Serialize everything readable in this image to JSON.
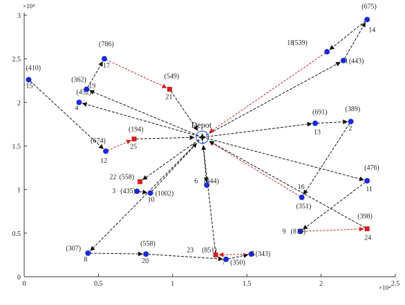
{
  "chart_data": {
    "type": "scatter",
    "title": "",
    "xlabel": "",
    "ylabel": "",
    "x_exponent_label": "×10⁴",
    "y_exponent_label": "×10⁴",
    "xlim": [
      0,
      2.5
    ],
    "ylim": [
      0,
      3
    ],
    "x_ticks": [
      "0",
      "0.5",
      "1",
      "1.5",
      "2",
      "2.5"
    ],
    "y_ticks": [
      "0",
      "0.5",
      "1",
      "1.5",
      "2",
      "2.5",
      "3"
    ],
    "depot": {
      "label": "Depot",
      "x": 1.2,
      "y": 1.6
    },
    "colors": {
      "customer": "#1a2bd8",
      "station": "#d42020",
      "black_route": "#111111",
      "red_route": "#d42020",
      "depot_ring": "#3355cc"
    },
    "nodes": [
      {
        "id": "14",
        "demand": "(675)",
        "x": 2.31,
        "y": 2.95,
        "kind": "customer"
      },
      {
        "id": "18",
        "demand": "(539)",
        "x": 2.04,
        "y": 2.58,
        "kind": "customer"
      },
      {
        "id": "1",
        "demand": "(443)",
        "x": 2.15,
        "y": 2.48,
        "kind": "customer"
      },
      {
        "id": "15",
        "demand": "(410)",
        "x": 0.03,
        "y": 2.26,
        "kind": "customer"
      },
      {
        "id": "17",
        "demand": "(786)",
        "x": 0.54,
        "y": 2.5,
        "kind": "customer"
      },
      {
        "id": "21",
        "demand": "(549)",
        "x": 0.98,
        "y": 2.15,
        "kind": "station"
      },
      {
        "id": "19",
        "demand": "(362)",
        "x": 0.42,
        "y": 2.15,
        "kind": "customer"
      },
      {
        "id": "4",
        "demand": "(452)",
        "x": 0.37,
        "y": 2.0,
        "kind": "customer"
      },
      {
        "id": "13",
        "demand": "(691)",
        "x": 1.96,
        "y": 1.76,
        "kind": "customer"
      },
      {
        "id": "2",
        "demand": "(389)",
        "x": 2.2,
        "y": 1.78,
        "kind": "customer"
      },
      {
        "id": "25",
        "demand": "(194)",
        "x": 0.74,
        "y": 1.58,
        "kind": "station"
      },
      {
        "id": "12",
        "demand": "(674)",
        "x": 0.55,
        "y": 1.44,
        "kind": "customer"
      },
      {
        "id": "22",
        "demand": "(558)",
        "x": 0.78,
        "y": 1.09,
        "kind": "station"
      },
      {
        "id": "3",
        "demand": "(435)",
        "x": 0.76,
        "y": 0.98,
        "kind": "customer"
      },
      {
        "id": "10",
        "demand": "(1002)",
        "x": 0.85,
        "y": 0.96,
        "kind": "customer"
      },
      {
        "id": "6",
        "demand": "(444)",
        "x": 1.23,
        "y": 1.05,
        "kind": "customer"
      },
      {
        "id": "11",
        "demand": "(476)",
        "x": 2.31,
        "y": 1.1,
        "kind": "customer"
      },
      {
        "id": "16",
        "demand": "(351)",
        "x": 1.87,
        "y": 0.91,
        "kind": "customer"
      },
      {
        "id": "9",
        "demand": "(810)",
        "x": 1.86,
        "y": 0.52,
        "kind": "customer"
      },
      {
        "id": "24",
        "demand": "(398)",
        "x": 2.31,
        "y": 0.55,
        "kind": "station"
      },
      {
        "id": "8",
        "demand": "(307)",
        "x": 0.43,
        "y": 0.27,
        "kind": "customer"
      },
      {
        "id": "20",
        "demand": "(558)",
        "x": 0.82,
        "y": 0.26,
        "kind": "customer"
      },
      {
        "id": "23",
        "demand": "(851)",
        "x": 1.29,
        "y": 0.25,
        "kind": "station"
      },
      {
        "id": "7",
        "demand": "(350)",
        "x": 1.36,
        "y": 0.2,
        "kind": "customer"
      },
      {
        "id": "5",
        "demand": "(343)",
        "x": 1.53,
        "y": 0.26,
        "kind": "customer"
      }
    ],
    "routes": [
      {
        "from": "depot",
        "to": "1",
        "color": "black"
      },
      {
        "from": "1",
        "to": "14",
        "color": "black"
      },
      {
        "from": "14",
        "to": "18",
        "color": "black"
      },
      {
        "from": "18",
        "to": "depot",
        "color": "red"
      },
      {
        "from": "depot",
        "to": "13",
        "color": "black"
      },
      {
        "from": "13",
        "to": "2",
        "color": "black"
      },
      {
        "from": "2",
        "to": "16",
        "color": "black"
      },
      {
        "from": "16",
        "to": "depot",
        "color": "red"
      },
      {
        "from": "depot",
        "to": "11",
        "color": "black"
      },
      {
        "from": "11",
        "to": "9",
        "color": "black"
      },
      {
        "from": "9",
        "to": "24",
        "color": "red"
      },
      {
        "from": "24",
        "to": "depot",
        "color": "black"
      },
      {
        "from": "depot",
        "to": "4",
        "color": "black"
      },
      {
        "from": "15",
        "to": "12",
        "color": "black"
      },
      {
        "from": "12",
        "to": "25",
        "color": "red"
      },
      {
        "from": "25",
        "to": "depot",
        "color": "black"
      },
      {
        "from": "depot",
        "to": "19",
        "color": "black"
      },
      {
        "from": "19",
        "to": "17",
        "color": "black"
      },
      {
        "from": "17",
        "to": "21",
        "color": "red"
      },
      {
        "from": "21",
        "to": "depot",
        "color": "black"
      },
      {
        "from": "depot",
        "to": "22",
        "color": "black"
      },
      {
        "from": "3",
        "to": "10",
        "color": "black"
      },
      {
        "from": "10",
        "to": "depot",
        "color": "black"
      },
      {
        "from": "depot",
        "to": "6",
        "color": "black"
      },
      {
        "from": "depot",
        "to": "8",
        "color": "black"
      },
      {
        "from": "8",
        "to": "20",
        "color": "black"
      },
      {
        "from": "20",
        "to": "7",
        "color": "black"
      },
      {
        "from": "7",
        "to": "5",
        "color": "black"
      },
      {
        "from": "5",
        "to": "23",
        "color": "red"
      },
      {
        "from": "23",
        "to": "depot",
        "color": "black"
      }
    ]
  }
}
